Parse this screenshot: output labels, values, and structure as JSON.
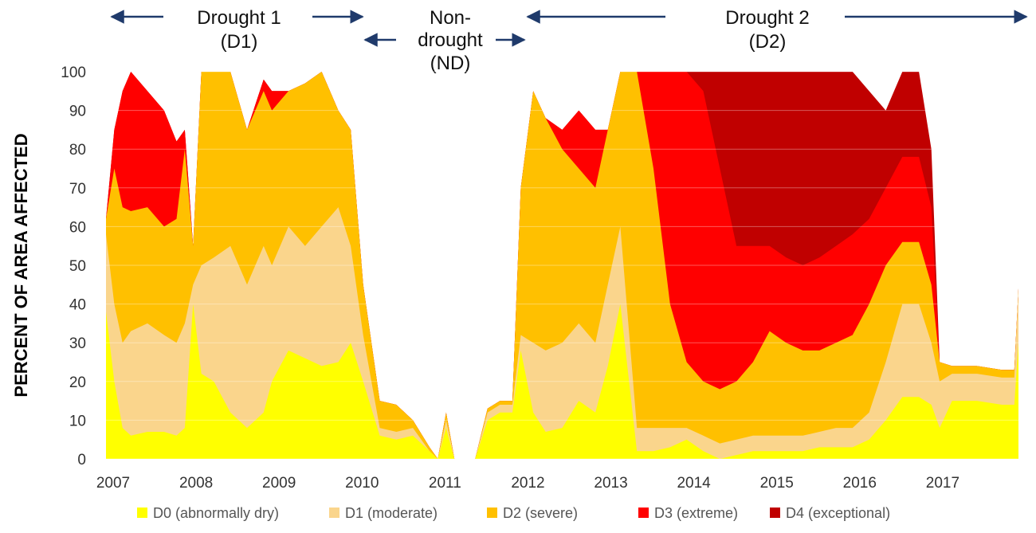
{
  "chart_data": {
    "type": "area",
    "stacked": true,
    "ylabel": "PERCENT OF AREA AFFECTED",
    "xlabel": "",
    "ylim": [
      0,
      100
    ],
    "y_ticks": [
      "0",
      "10",
      "20",
      "30",
      "40",
      "50",
      "60",
      "70",
      "80",
      "90",
      "100"
    ],
    "x_tick_labels": [
      "2007",
      "2008",
      "2009",
      "2010",
      "2011",
      "2012",
      "2013",
      "2014",
      "2015",
      "2016",
      "2017"
    ],
    "grid": "horizontal",
    "legend_position": "bottom",
    "period_annotations": [
      {
        "lines": [
          "Drought 1",
          "(D1)"
        ],
        "from": 2007.0,
        "to": 2010.1
      },
      {
        "lines": [
          "Non-",
          "drought",
          "(ND)"
        ],
        "from": 2010.1,
        "to": 2012.0
      },
      {
        "lines": [
          "Drought 2",
          "(D2)"
        ],
        "from": 2012.0,
        "to": 2018.0
      }
    ],
    "series": [
      {
        "name": "D0 (abnormally dry)",
        "color": "#FFFF00"
      },
      {
        "name": "D1 (moderate)",
        "color": "#FAD58C"
      },
      {
        "name": "D2 (severe)",
        "color": "#FFC000"
      },
      {
        "name": "D3 (extreme)",
        "color": "#FF0000"
      },
      {
        "name": "D4 (exceptional)",
        "color": "#C00000"
      }
    ],
    "cumulative_levels": {
      "x": [
        2007.0,
        2007.1,
        2007.2,
        2007.3,
        2007.5,
        2007.7,
        2007.85,
        2007.95,
        2008.05,
        2008.15,
        2008.3,
        2008.5,
        2008.7,
        2008.9,
        2009.0,
        2009.2,
        2009.4,
        2009.6,
        2009.8,
        2009.95,
        2010.1,
        2010.3,
        2010.5,
        2010.7,
        2010.9,
        2011.0,
        2011.1,
        2011.2,
        2011.35,
        2011.45,
        2011.6,
        2011.75,
        2011.9,
        2012.0,
        2012.15,
        2012.3,
        2012.5,
        2012.7,
        2012.9,
        2013.05,
        2013.2,
        2013.4,
        2013.6,
        2013.8,
        2014.0,
        2014.2,
        2014.4,
        2014.6,
        2014.8,
        2015.0,
        2015.2,
        2015.4,
        2015.6,
        2015.8,
        2016.0,
        2016.2,
        2016.4,
        2016.6,
        2016.8,
        2016.95,
        2017.05,
        2017.2,
        2017.5,
        2017.8,
        2017.95,
        2018.0
      ],
      "D0_plus": [
        38,
        20,
        8,
        6,
        7,
        7,
        6,
        8,
        40,
        22,
        20,
        12,
        8,
        12,
        20,
        28,
        26,
        24,
        25,
        30,
        20,
        6,
        5,
        6,
        2,
        0,
        8,
        0,
        0,
        0,
        10,
        12,
        12,
        28,
        12,
        7,
        8,
        15,
        12,
        24,
        40,
        2,
        2,
        3,
        5,
        2,
        0,
        1,
        2,
        2,
        2,
        2,
        3,
        3,
        3,
        5,
        10,
        16,
        16,
        14,
        8,
        15,
        15,
        14,
        14,
        30
      ],
      "D1_plus": [
        58,
        40,
        30,
        33,
        35,
        32,
        30,
        35,
        45,
        50,
        52,
        55,
        45,
        55,
        50,
        60,
        55,
        60,
        65,
        55,
        32,
        8,
        7,
        8,
        2,
        0,
        10,
        0,
        0,
        0,
        12,
        14,
        14,
        32,
        30,
        28,
        30,
        35,
        30,
        45,
        60,
        8,
        8,
        8,
        8,
        6,
        4,
        5,
        6,
        6,
        6,
        6,
        7,
        8,
        8,
        12,
        25,
        40,
        40,
        30,
        20,
        22,
        22,
        21,
        21,
        44
      ],
      "D2_plus": [
        62,
        75,
        65,
        64,
        65,
        60,
        62,
        80,
        55,
        100,
        100,
        100,
        85,
        95,
        90,
        95,
        97,
        100,
        90,
        85,
        45,
        15,
        14,
        10,
        3,
        0,
        12,
        0,
        0,
        0,
        13,
        15,
        15,
        70,
        95,
        88,
        80,
        75,
        70,
        85,
        100,
        100,
        75,
        40,
        25,
        20,
        18,
        20,
        25,
        33,
        30,
        28,
        28,
        30,
        32,
        40,
        50,
        56,
        56,
        45,
        25,
        24,
        24,
        23,
        23,
        44
      ],
      "D3_plus": [
        62,
        85,
        95,
        100,
        95,
        90,
        82,
        85,
        55,
        100,
        100,
        100,
        85,
        98,
        95,
        95,
        97,
        100,
        90,
        85,
        45,
        15,
        14,
        10,
        3,
        0,
        12,
        0,
        0,
        0,
        13,
        15,
        15,
        70,
        95,
        88,
        85,
        90,
        85,
        85,
        100,
        100,
        100,
        100,
        100,
        95,
        75,
        55,
        55,
        55,
        52,
        50,
        52,
        55,
        58,
        62,
        70,
        78,
        78,
        65,
        25,
        24,
        24,
        23,
        23,
        44
      ],
      "D4_plus": [
        62,
        85,
        95,
        100,
        95,
        90,
        82,
        85,
        55,
        100,
        100,
        100,
        85,
        98,
        95,
        95,
        97,
        100,
        90,
        85,
        45,
        15,
        14,
        10,
        3,
        0,
        12,
        0,
        0,
        0,
        13,
        15,
        15,
        70,
        95,
        88,
        85,
        90,
        85,
        85,
        100,
        100,
        100,
        100,
        100,
        100,
        100,
        100,
        100,
        100,
        100,
        100,
        100,
        100,
        100,
        95,
        90,
        100,
        100,
        80,
        25,
        24,
        24,
        23,
        23,
        44
      ]
    }
  }
}
